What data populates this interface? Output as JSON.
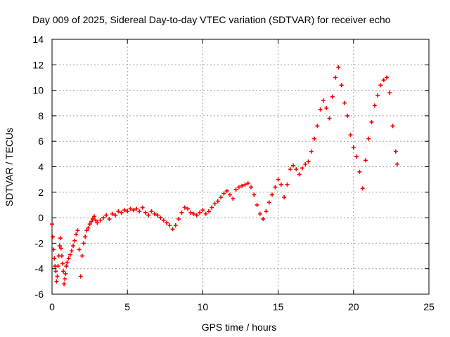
{
  "chart_data": {
    "type": "scatter",
    "title": "Day 009 of 2025, Sidereal Day-to-day VTEC variation (SDTVAR) for receiver echo",
    "xlabel": "GPS time / hours",
    "ylabel": "SDTVAR / TECUs",
    "xlim": [
      0,
      25
    ],
    "ylim": [
      -6,
      14
    ],
    "xticks": [
      0,
      5,
      10,
      15,
      20,
      25
    ],
    "yticks": [
      -6,
      -4,
      -2,
      0,
      2,
      4,
      6,
      8,
      10,
      12,
      14
    ],
    "grid": true,
    "marker": "+",
    "series": [
      {
        "name": "SDTVAR",
        "color": "#ff0000",
        "x": [
          0,
          0.05,
          0.1,
          0.15,
          0.2,
          0.25,
          0.3,
          0.35,
          0.4,
          0.45,
          0.5,
          0.55,
          0.6,
          0.65,
          0.7,
          0.75,
          0.8,
          0.85,
          0.9,
          0.95,
          1.0,
          1.1,
          1.2,
          1.3,
          1.4,
          1.5,
          1.6,
          1.7,
          1.8,
          1.9,
          2.0,
          2.1,
          2.2,
          2.3,
          2.4,
          2.5,
          2.6,
          2.7,
          2.8,
          2.9,
          3.0,
          3.2,
          3.4,
          3.6,
          3.8,
          4.0,
          4.2,
          4.4,
          4.6,
          4.8,
          5.0,
          5.2,
          5.4,
          5.6,
          5.8,
          6.0,
          6.2,
          6.4,
          6.6,
          6.8,
          7.0,
          7.2,
          7.4,
          7.6,
          7.8,
          8.0,
          8.2,
          8.4,
          8.6,
          8.8,
          9.0,
          9.2,
          9.4,
          9.6,
          9.8,
          10.0,
          10.2,
          10.4,
          10.6,
          10.8,
          11.0,
          11.2,
          11.4,
          11.6,
          11.8,
          12.0,
          12.2,
          12.4,
          12.6,
          12.8,
          13.0,
          13.2,
          13.4,
          13.6,
          13.8,
          14.0,
          14.2,
          14.4,
          14.6,
          14.8,
          15.0,
          15.2,
          15.4,
          15.6,
          15.8,
          16.0,
          16.2,
          16.4,
          16.6,
          16.8,
          17.0,
          17.2,
          17.4,
          17.6,
          17.8,
          18.0,
          18.2,
          18.4,
          18.6,
          18.8,
          19.0,
          19.2,
          19.4,
          19.6,
          19.8,
          20.0,
          20.2,
          20.4,
          20.6,
          20.8,
          21.0,
          21.2,
          21.4,
          21.6,
          21.8,
          22.0,
          22.2,
          22.4,
          22.6,
          22.8,
          22.9
        ],
        "values": [
          -0.5,
          -1.5,
          -2.5,
          -3.2,
          -3.8,
          -4.2,
          -5.0,
          -4.6,
          -3.8,
          -3.0,
          -2.2,
          -1.6,
          -2.4,
          -3.0,
          -3.6,
          -4.2,
          -5.2,
          -4.8,
          -4.4,
          -3.8,
          -3.5,
          -3.2,
          -2.9,
          -2.6,
          -2.2,
          -1.8,
          -1.3,
          -1.0,
          -2.5,
          -4.6,
          -3.0,
          -2.0,
          -1.5,
          -1.0,
          -0.8,
          -0.5,
          -0.3,
          -0.1,
          0.1,
          -0.2,
          -0.4,
          -0.2,
          0.0,
          0.2,
          -0.1,
          0.3,
          0.2,
          0.5,
          0.4,
          0.6,
          0.5,
          0.7,
          0.6,
          0.7,
          0.5,
          0.8,
          0.4,
          0.2,
          0.5,
          0.3,
          0.2,
          0.0,
          -0.2,
          -0.4,
          -0.6,
          -0.9,
          -0.6,
          -0.1,
          0.4,
          0.8,
          0.7,
          0.4,
          0.3,
          0.2,
          0.4,
          0.6,
          0.3,
          0.5,
          0.8,
          1.1,
          1.3,
          1.6,
          1.9,
          2.1,
          1.8,
          1.5,
          2.2,
          2.4,
          2.5,
          2.6,
          2.7,
          2.4,
          1.8,
          1.0,
          0.3,
          -0.1,
          0.5,
          1.2,
          1.8,
          2.4,
          3.0,
          2.6,
          1.6,
          2.6,
          3.8,
          4.1,
          3.8,
          3.4,
          3.9,
          4.2,
          4.4,
          5.2,
          6.2,
          7.2,
          8.5,
          9.2,
          8.6,
          7.8,
          9.5,
          11.0,
          11.8,
          10.4,
          9.0,
          8.0,
          6.5,
          5.5,
          4.8,
          3.6,
          2.3,
          4.5,
          6.2,
          7.5,
          8.8,
          9.6,
          10.4,
          10.8,
          11.0,
          9.8,
          7.2,
          5.2,
          4.2
        ]
      }
    ]
  }
}
